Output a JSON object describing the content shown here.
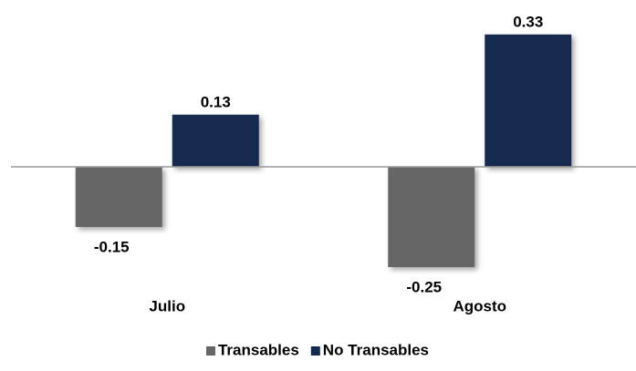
{
  "chart_data": {
    "type": "bar",
    "categories": [
      "Julio",
      "Agosto"
    ],
    "series": [
      {
        "name": "Transables",
        "color": "#666666",
        "values": [
          -0.15,
          -0.25
        ]
      },
      {
        "name": "No Transables",
        "color": "#13294f",
        "values": [
          0.13,
          0.33
        ]
      }
    ],
    "ylim": [
      -0.35,
      0.4
    ],
    "legend": "bottom"
  }
}
